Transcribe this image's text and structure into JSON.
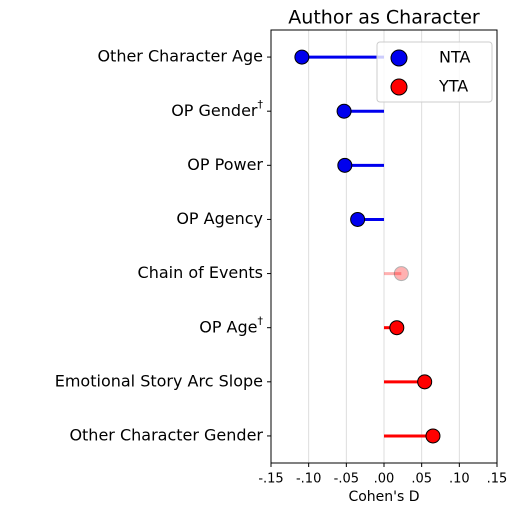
{
  "chart_data": {
    "type": "lollipop",
    "title": "Author as Character",
    "xlabel": "Cohen's D",
    "categories": [
      "Other Character Age",
      "OP Gender†",
      "OP Power",
      "OP Agency",
      "Chain of Events",
      "OP Age†",
      "Emotional Story Arc Slope",
      "Other Character Gender"
    ],
    "series": [
      {
        "name": "NTA",
        "color": "#0000ee",
        "values": [
          -0.109,
          -0.053,
          -0.052,
          -0.035,
          null,
          null,
          null,
          null
        ]
      },
      {
        "name": "YTA",
        "color": "#ff0000",
        "values": [
          null,
          null,
          null,
          null,
          0.023,
          0.017,
          0.054,
          0.065
        ]
      }
    ],
    "point_opacity": [
      1,
      1,
      1,
      1,
      0.3,
      1,
      1,
      1
    ],
    "xlim": [
      -0.15,
      0.15
    ],
    "xticks": [
      {
        "value": -0.15,
        "label": "-.15"
      },
      {
        "value": -0.1,
        "label": "-.10"
      },
      {
        "value": -0.05,
        "label": "-.05"
      },
      {
        "value": 0,
        "label": ".00"
      },
      {
        "value": 0.05,
        "label": ".05"
      },
      {
        "value": 0.1,
        "label": ".10"
      },
      {
        "value": 0.15,
        "label": ".15"
      }
    ],
    "grid": true,
    "legend": "upper right"
  }
}
